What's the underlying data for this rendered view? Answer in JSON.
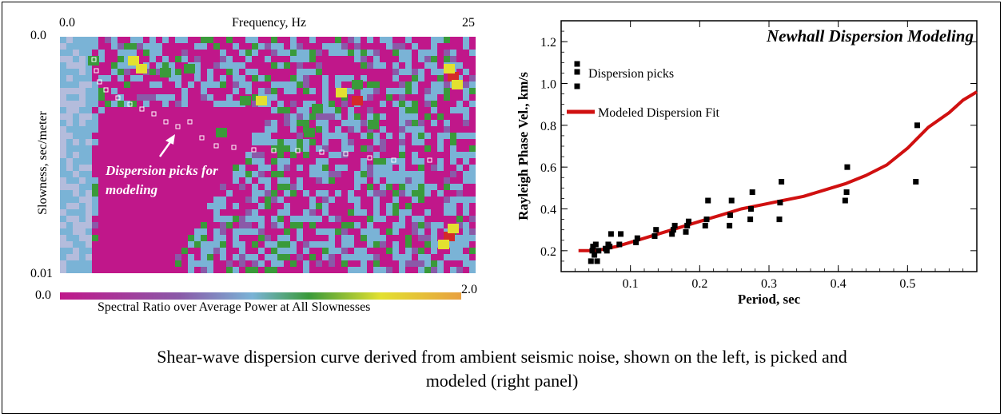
{
  "caption": {
    "line1": "Shear-wave dispersion curve derived from ambient seismic noise, shown on the left, is picked and",
    "line2": "modeled (right panel)"
  },
  "left_panel": {
    "top_axis_label": "Frequency, Hz",
    "top_tick_min": "0.0",
    "top_tick_max": "25",
    "y_axis_label": "Slowness, sec/meter",
    "y_tick_top": "0.0",
    "y_tick_bottom": "0.01",
    "annotation_line1": "Dispersion picks for",
    "annotation_line2": "modeling",
    "colorbar_min": "0.0",
    "colorbar_max": "2.0",
    "colorbar_label": "Spectral Ratio over Average Power at All Slownesses",
    "colors": {
      "low": "#c0178a",
      "mid": "#7ab3d6",
      "green": "#3a9a3a",
      "yellow": "#e3e030",
      "high": "#d42a2a",
      "orange": "#e8a040"
    }
  },
  "chart_data": {
    "type": "scatter",
    "title": "Newhall Dispersion Modeling",
    "xlabel": "Period, sec",
    "ylabel": "Rayleigh Phase Vel., km/s",
    "xlim": [
      0.0,
      0.6
    ],
    "ylim": [
      0.1,
      1.3
    ],
    "xticks": [
      "0.1",
      "0.2",
      "0.3",
      "0.4",
      "0.5"
    ],
    "yticks": [
      "0.2",
      "0.4",
      "0.6",
      "0.8",
      "1.0",
      "1.2"
    ],
    "legend": {
      "placement": "top-left",
      "entries": [
        "Dispersion picks",
        "Modeled Dispersion Fit"
      ]
    },
    "series": [
      {
        "name": "Dispersion picks",
        "type": "scatter",
        "color": "#000000",
        "points": [
          [
            0.043,
            0.15
          ],
          [
            0.045,
            0.2
          ],
          [
            0.046,
            0.22
          ],
          [
            0.048,
            0.18
          ],
          [
            0.05,
            0.23
          ],
          [
            0.052,
            0.15
          ],
          [
            0.054,
            0.2
          ],
          [
            0.064,
            0.21
          ],
          [
            0.066,
            0.2
          ],
          [
            0.068,
            0.23
          ],
          [
            0.07,
            0.22
          ],
          [
            0.072,
            0.28
          ],
          [
            0.084,
            0.23
          ],
          [
            0.086,
            0.28
          ],
          [
            0.108,
            0.24
          ],
          [
            0.11,
            0.26
          ],
          [
            0.135,
            0.27
          ],
          [
            0.137,
            0.3
          ],
          [
            0.16,
            0.28
          ],
          [
            0.162,
            0.3
          ],
          [
            0.164,
            0.32
          ],
          [
            0.18,
            0.29
          ],
          [
            0.182,
            0.32
          ],
          [
            0.184,
            0.34
          ],
          [
            0.208,
            0.32
          ],
          [
            0.21,
            0.35
          ],
          [
            0.212,
            0.44
          ],
          [
            0.243,
            0.32
          ],
          [
            0.244,
            0.37
          ],
          [
            0.246,
            0.44
          ],
          [
            0.273,
            0.35
          ],
          [
            0.274,
            0.4
          ],
          [
            0.276,
            0.48
          ],
          [
            0.315,
            0.35
          ],
          [
            0.316,
            0.43
          ],
          [
            0.318,
            0.53
          ],
          [
            0.41,
            0.44
          ],
          [
            0.412,
            0.48
          ],
          [
            0.413,
            0.6
          ],
          [
            0.512,
            0.53
          ],
          [
            0.514,
            0.8
          ]
        ]
      },
      {
        "name": "Modeled Dispersion Fit",
        "type": "line",
        "color": "#d01010",
        "points": [
          [
            0.025,
            0.2
          ],
          [
            0.05,
            0.2
          ],
          [
            0.08,
            0.22
          ],
          [
            0.11,
            0.25
          ],
          [
            0.14,
            0.28
          ],
          [
            0.17,
            0.31
          ],
          [
            0.2,
            0.34
          ],
          [
            0.23,
            0.37
          ],
          [
            0.26,
            0.4
          ],
          [
            0.29,
            0.42
          ],
          [
            0.32,
            0.44
          ],
          [
            0.35,
            0.46
          ],
          [
            0.38,
            0.49
          ],
          [
            0.41,
            0.52
          ],
          [
            0.44,
            0.56
          ],
          [
            0.47,
            0.61
          ],
          [
            0.5,
            0.69
          ],
          [
            0.53,
            0.79
          ],
          [
            0.56,
            0.86
          ],
          [
            0.58,
            0.92
          ],
          [
            0.6,
            0.96
          ]
        ]
      }
    ]
  }
}
